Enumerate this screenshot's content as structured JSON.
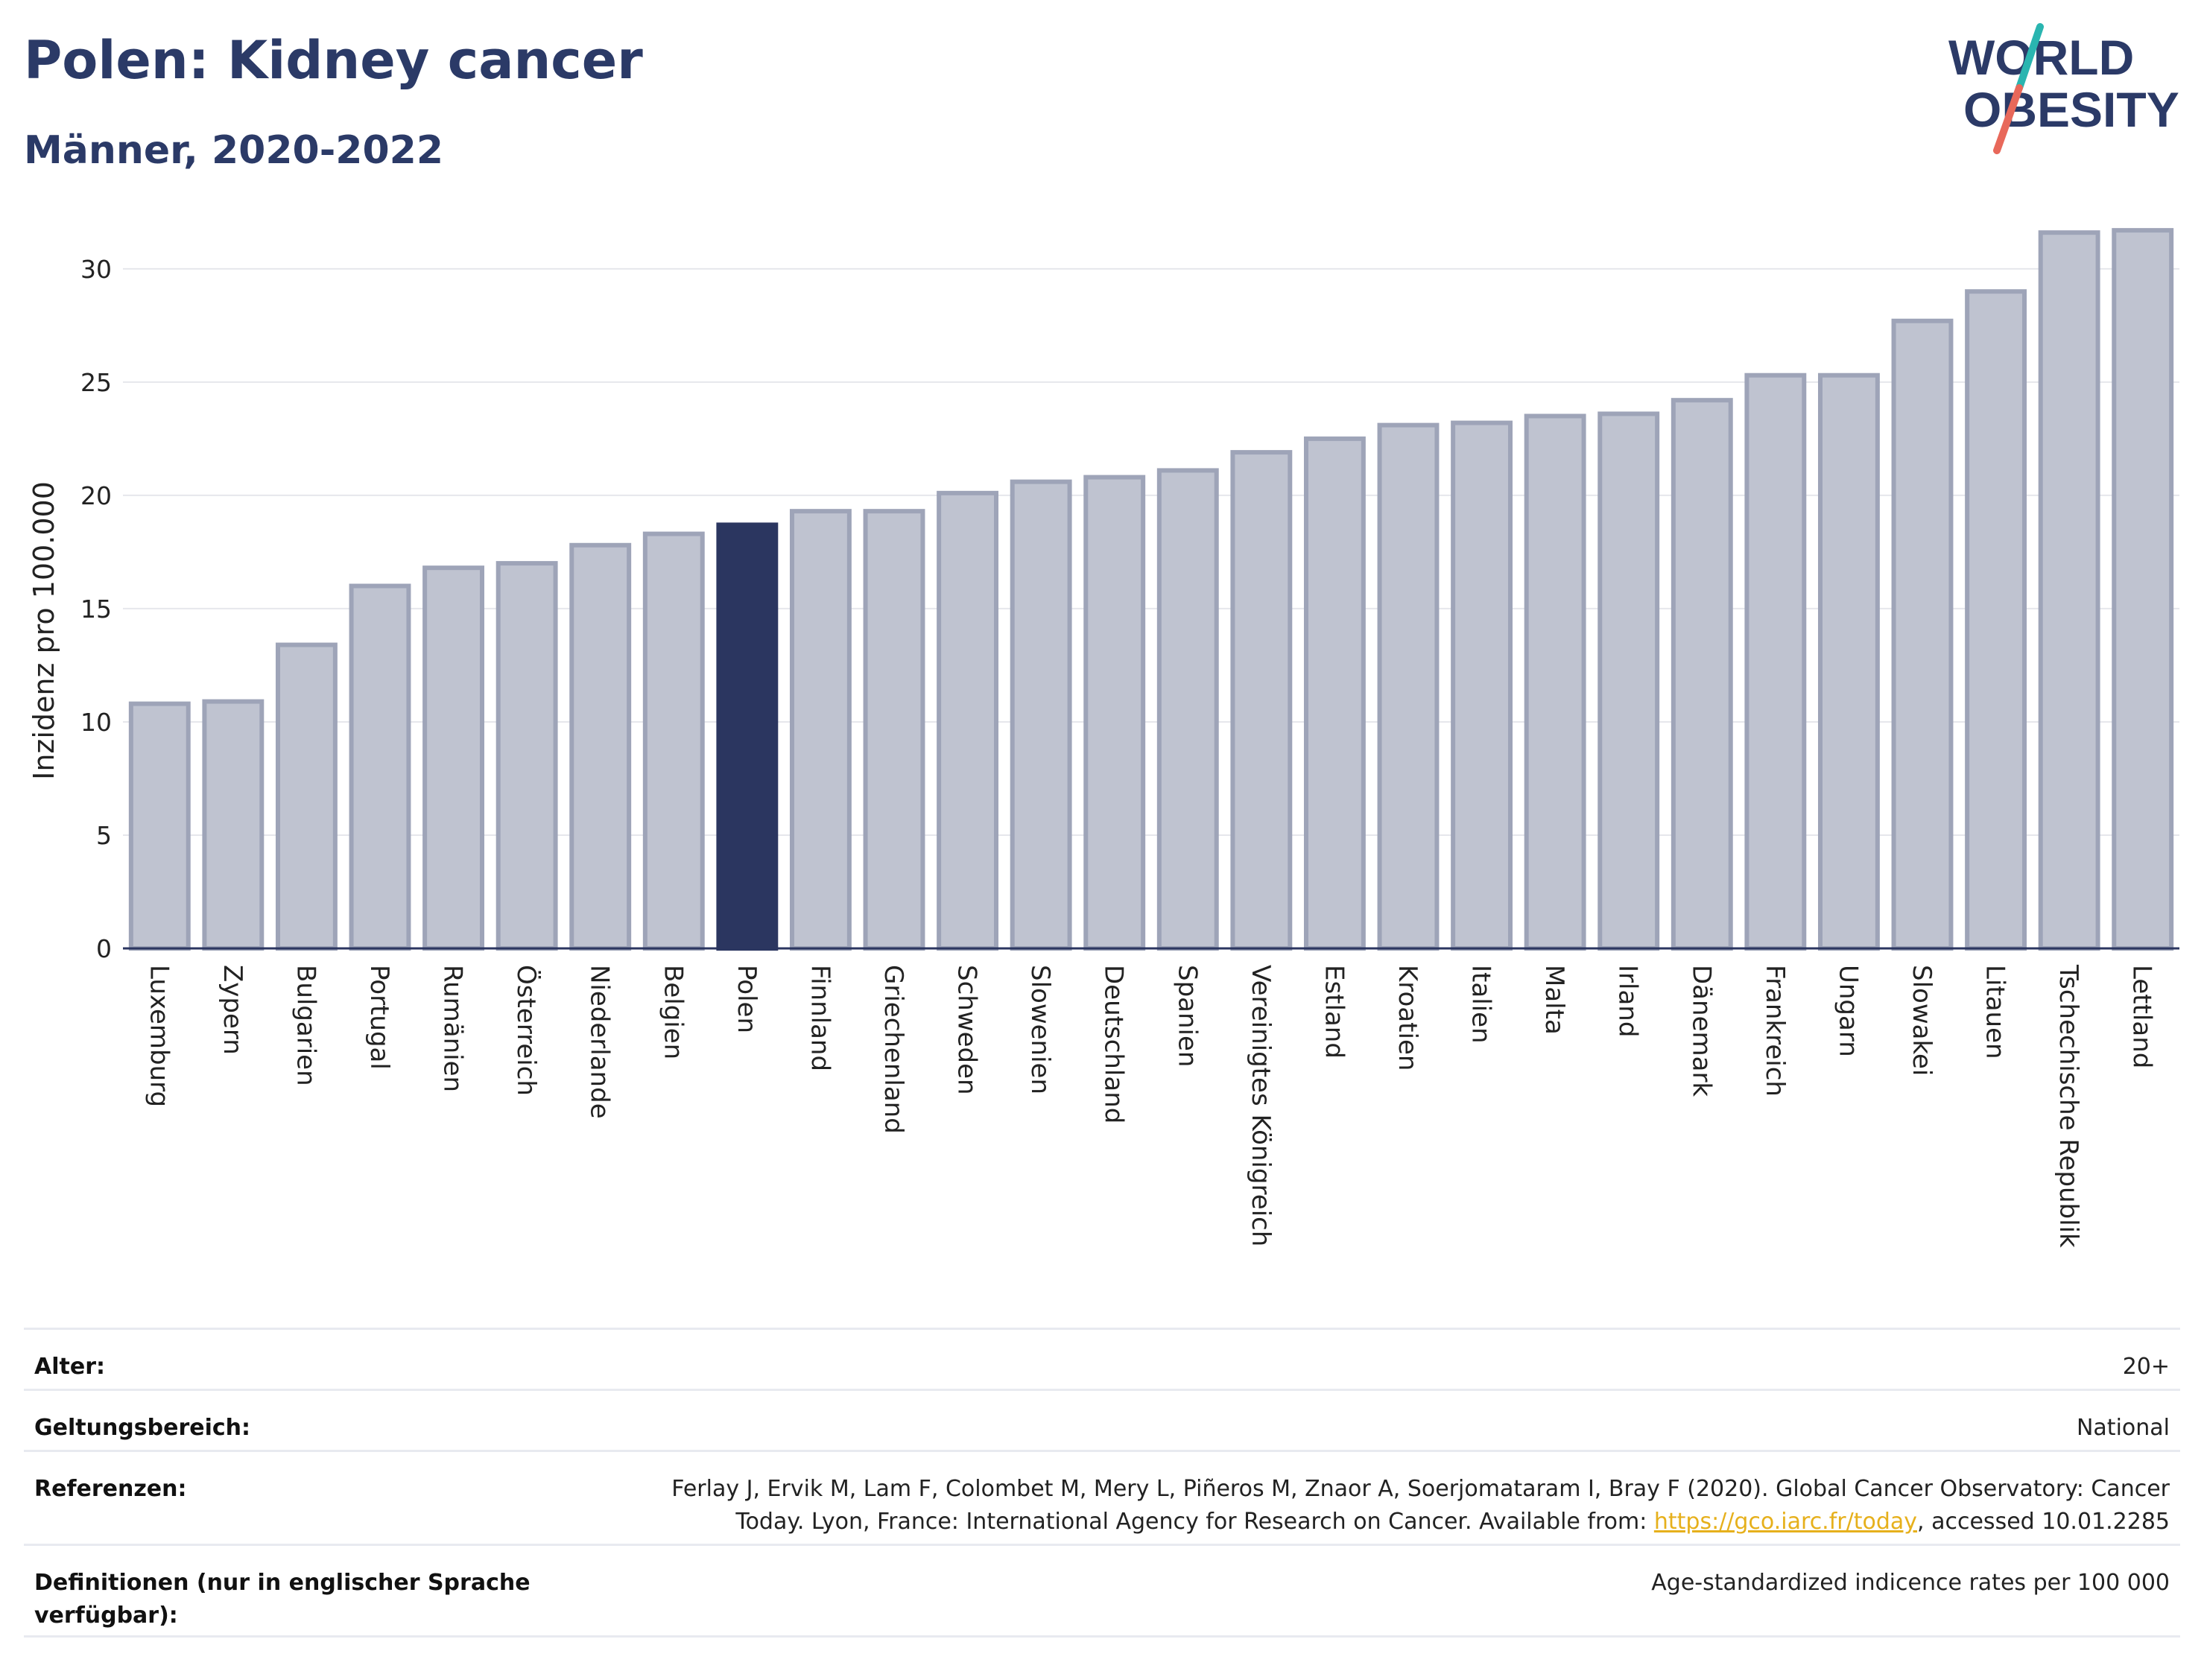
{
  "header": {
    "title": "Polen: Kidney cancer",
    "subtitle": "Männer, 2020-2022"
  },
  "logo": {
    "line1": "WORLD",
    "line2": "OBESITY",
    "colors": {
      "text": "#2b3a67",
      "slash_teal": "#2ab5b0",
      "slash_red": "#e8685a"
    }
  },
  "chart_data": {
    "type": "bar",
    "title": "",
    "xlabel": "",
    "ylabel": "Inzidenz pro 100.000",
    "ylim": [
      0,
      32
    ],
    "yticks": [
      0,
      5,
      10,
      15,
      20,
      25,
      30
    ],
    "grid": true,
    "highlight": "Poland",
    "colors": {
      "bar": "#bfc3d0",
      "bar_edge": "#9ea4b8",
      "highlight": "#2b3660",
      "axis": "#2b3660",
      "grid": "#e6e7ec"
    },
    "categories": [
      "Luxemburg",
      "Zypern",
      "Bulgarien",
      "Portugal",
      "Rumänien",
      "Österreich",
      "Niederlande",
      "Belgien",
      "Polen",
      "Finnland",
      "Griechenland",
      "Schweden",
      "Slowenien",
      "Deutschland",
      "Spanien",
      "Vereinigtes Königreich",
      "Estland",
      "Kroatien",
      "Italien",
      "Malta",
      "Irland",
      "Dänemark",
      "Frankreich",
      "Ungarn",
      "Slowakei",
      "Litauen",
      "Tschechische Republik",
      "Lettland"
    ],
    "values": [
      10.8,
      10.9,
      13.4,
      16.0,
      16.8,
      17.0,
      17.8,
      18.3,
      18.7,
      19.3,
      19.3,
      20.1,
      20.6,
      20.8,
      21.1,
      21.9,
      22.5,
      23.1,
      23.2,
      23.5,
      23.6,
      24.2,
      25.3,
      25.3,
      27.7,
      29.0,
      31.6,
      31.7
    ]
  },
  "meta": {
    "rows": [
      {
        "label": "Alter:",
        "value": "20+"
      },
      {
        "label": "Geltungsbereich:",
        "value": "National"
      },
      {
        "label": "Referenzen:",
        "value_before": "Ferlay J, Ervik M, Lam F, Colombet M, Mery L, Piñeros M, Znaor A, Soerjomataram I, Bray F (2020). Global Cancer Observatory: Cancer Today. Lyon, France: International Agency for Research on Cancer. Available from: ",
        "link": "https://gco.iarc.fr/today",
        "value_after": ", accessed 10.01.2285"
      },
      {
        "label": "Definitionen (nur in englischer Sprache verfügbar):",
        "value": "Age-standardized indicence rates per 100 000"
      }
    ]
  }
}
